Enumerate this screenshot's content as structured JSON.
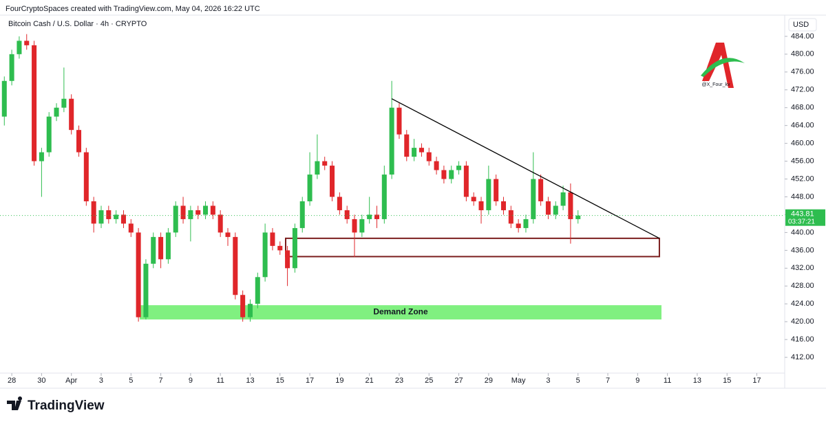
{
  "header": {
    "text": "FourCryptoSpaces created with TradingView.com, May 04, 2026 16:22 UTC"
  },
  "footer": {
    "brand": "TradingView"
  },
  "watermark": "@X_Four_kv",
  "chart_data": {
    "type": "candlestick",
    "title": "Bitcoin Cash / U.S. Dollar · 4h · CRYPTO",
    "currency": "USD",
    "up_color": "#2ebd4f",
    "down_color": "#e0262a",
    "x": [
      -0.5,
      0,
      0.5,
      1,
      1.5,
      2,
      2.5,
      3,
      3.5,
      4,
      4.5,
      5,
      5.5,
      6,
      6.5,
      7,
      7.5,
      8,
      8.5,
      9,
      9.5,
      10,
      10.5,
      11,
      11.5,
      12,
      12.5,
      13,
      13.5,
      14,
      14.5,
      15,
      15.5,
      16,
      16.5,
      17,
      17.5,
      18,
      18.5,
      19,
      19.5,
      20,
      20.5,
      21,
      21.5,
      22,
      22.5,
      23,
      23.5,
      24,
      24.5,
      25,
      25.5,
      26,
      26.5,
      27,
      27.5,
      28,
      28.5,
      29,
      29.5,
      30,
      30.5,
      31,
      31.5,
      32,
      32.5,
      33,
      33.5,
      34,
      34.5,
      35,
      35.5,
      36,
      36.5,
      37,
      37.5,
      38
    ],
    "open": [
      466,
      474,
      480,
      483,
      482,
      456,
      458,
      466,
      468,
      470,
      463,
      458,
      447,
      442,
      445,
      443,
      444,
      442,
      440,
      421,
      433,
      439,
      434,
      440,
      446,
      443,
      445,
      444,
      446,
      444,
      440,
      439,
      426,
      421,
      424,
      430,
      440,
      437,
      436,
      432,
      441,
      447,
      453,
      456,
      455,
      448,
      445,
      443,
      440,
      443,
      444,
      443,
      453,
      468,
      462,
      457,
      459,
      458,
      456,
      454,
      452,
      454,
      455,
      448,
      447,
      445,
      452,
      447,
      445,
      442,
      441,
      443,
      452,
      447,
      444,
      446,
      449,
      443
    ],
    "high": [
      475,
      481,
      484,
      484.5,
      483,
      459,
      467,
      469,
      477,
      471,
      464,
      459,
      448,
      446,
      446,
      445,
      445,
      443,
      441,
      434,
      440,
      440,
      441,
      447,
      448,
      446,
      446,
      447,
      447,
      445,
      441,
      440,
      427,
      425,
      431,
      442,
      441,
      438,
      437,
      442,
      448,
      458,
      462,
      457,
      456,
      449,
      446,
      444,
      444,
      448,
      446,
      455,
      474,
      469,
      463,
      461,
      460,
      459,
      457,
      455,
      455,
      456,
      456,
      449,
      448,
      455,
      453,
      448,
      446,
      443,
      444,
      458,
      453,
      448,
      447,
      450.5,
      451,
      445
    ],
    "low": [
      464,
      473,
      479,
      481,
      455,
      448,
      457,
      465,
      467,
      462,
      457,
      446,
      440,
      441,
      442,
      442,
      441,
      439,
      420,
      420.5,
      432,
      432,
      433,
      439,
      442,
      438,
      443,
      443,
      443,
      439,
      437,
      425,
      420,
      420,
      423,
      429,
      436,
      435,
      428,
      431,
      440,
      446,
      452,
      454,
      447,
      444,
      442,
      434.5,
      439,
      442,
      441,
      442,
      452,
      461,
      456,
      456,
      457,
      455,
      453,
      451,
      451,
      453,
      447,
      446,
      442,
      444,
      446,
      444,
      441,
      440,
      440,
      442,
      446,
      443,
      443,
      445,
      437.5,
      442
    ],
    "close": [
      474,
      480,
      483,
      482,
      456,
      458,
      466,
      468,
      470,
      463,
      458,
      447,
      442,
      445,
      443,
      444,
      442,
      440,
      421,
      433,
      439,
      434,
      440,
      446,
      443,
      445,
      444,
      446,
      444,
      440,
      439,
      426,
      421,
      424,
      430,
      440,
      437,
      436,
      432,
      441,
      447,
      453,
      456,
      455,
      448,
      445,
      443,
      440,
      443,
      444,
      443,
      453,
      468,
      462,
      457,
      459,
      458,
      456,
      454,
      452,
      454,
      455,
      448,
      447,
      445,
      452,
      447,
      445,
      442,
      441,
      443,
      452,
      447,
      444,
      446,
      449,
      443,
      443.81
    ],
    "last_price": 443.81,
    "countdown": "03:37:21",
    "xlim": [
      -0.79,
      51.87
    ],
    "ylim": [
      408.47,
      488.76
    ],
    "xticks": [
      {
        "value": 0,
        "label": "28"
      },
      {
        "value": 2,
        "label": "30"
      },
      {
        "value": 4,
        "label": "Apr"
      },
      {
        "value": 6,
        "label": "3"
      },
      {
        "value": 8,
        "label": "5"
      },
      {
        "value": 10,
        "label": "7"
      },
      {
        "value": 12,
        "label": "9"
      },
      {
        "value": 14,
        "label": "11"
      },
      {
        "value": 16,
        "label": "13"
      },
      {
        "value": 18,
        "label": "15"
      },
      {
        "value": 20,
        "label": "17"
      },
      {
        "value": 22,
        "label": "19"
      },
      {
        "value": 24,
        "label": "21"
      },
      {
        "value": 26,
        "label": "23"
      },
      {
        "value": 28,
        "label": "25"
      },
      {
        "value": 30,
        "label": "27"
      },
      {
        "value": 32,
        "label": "29"
      },
      {
        "value": 34,
        "label": "May"
      },
      {
        "value": 36,
        "label": "3"
      },
      {
        "value": 38,
        "label": "5"
      },
      {
        "value": 40,
        "label": "7"
      },
      {
        "value": 42,
        "label": "9"
      },
      {
        "value": 44,
        "label": "11"
      },
      {
        "value": 46,
        "label": "13"
      },
      {
        "value": 48,
        "label": "15"
      },
      {
        "value": 50,
        "label": "17"
      }
    ],
    "yticks": [
      {
        "value": 412,
        "label": "412.00"
      },
      {
        "value": 416,
        "label": "416.00"
      },
      {
        "value": 420,
        "label": "420.00"
      },
      {
        "value": 424,
        "label": "424.00"
      },
      {
        "value": 428,
        "label": "428.00"
      },
      {
        "value": 432,
        "label": "432.00"
      },
      {
        "value": 436,
        "label": "436.00"
      },
      {
        "value": 440,
        "label": "440.00"
      },
      {
        "value": 444,
        "label": "444.00"
      },
      {
        "value": 448,
        "label": "448.00"
      },
      {
        "value": 452,
        "label": "452.00"
      },
      {
        "value": 456,
        "label": "456.00"
      },
      {
        "value": 460,
        "label": "460.00"
      },
      {
        "value": 464,
        "label": "464.00"
      },
      {
        "value": 468,
        "label": "468.00"
      },
      {
        "value": 472,
        "label": "472.00"
      },
      {
        "value": 476,
        "label": "476.00"
      },
      {
        "value": 480,
        "label": "480.00"
      },
      {
        "value": 484,
        "label": "484.00"
      }
    ],
    "annotations": {
      "trendline": {
        "x": [
          25.5,
          43.46
        ],
        "y": [
          470,
          438.7
        ],
        "color": "#000000"
      },
      "range_box": {
        "x": [
          18.38,
          43.46
        ],
        "y": [
          434.6,
          438.7
        ],
        "color": "#7a1c1c"
      },
      "demand_zone": {
        "label": "Demand Zone",
        "x": [
          8.59,
          43.6
        ],
        "y": [
          420.5,
          423.7
        ],
        "color": "#80f080"
      }
    }
  }
}
